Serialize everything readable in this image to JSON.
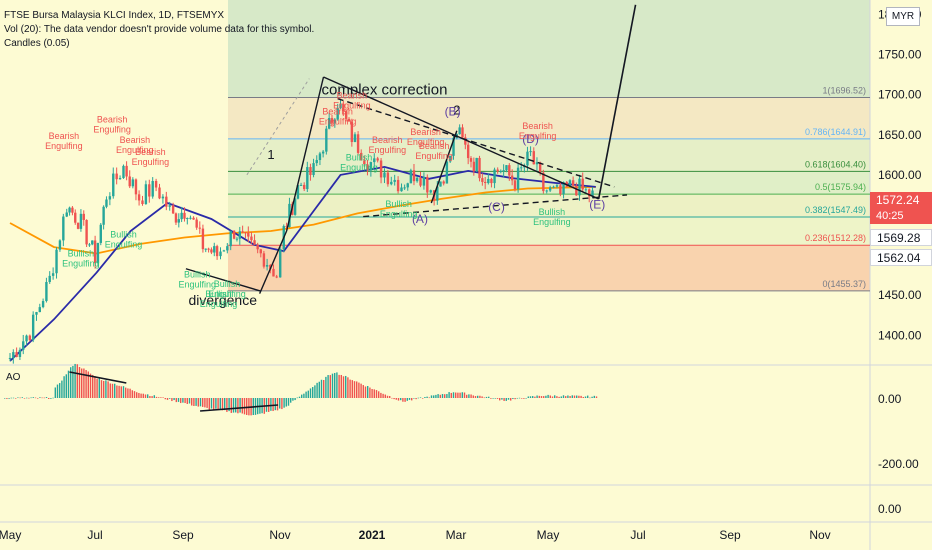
{
  "header": {
    "line1": "FTSE Bursa Malaysia KLCI Index, 1D, FTSEMYX",
    "line2": "Vol (20): The data vendor doesn't provide volume data for this symbol.",
    "line3": "Candles (0.05)"
  },
  "currency": "MYR",
  "price_boxes": {
    "last": "1572.24",
    "countdown": "40:25",
    "p2": "1569.28",
    "p3": "1562.04"
  },
  "colors": {
    "background": "#fdfbd3",
    "up_candle": "#26a69a",
    "down_candle": "#ef5350",
    "ma_blue": "#2a2aa8",
    "ma_orange": "#ff9800"
  },
  "chart_data": [
    {
      "type": "candlestick",
      "symbol": "FTSE Bursa Malaysia KLCI Index",
      "interval": "1D",
      "y_axis": {
        "ticks": [
          "1800.00",
          "1750.00",
          "1700.00",
          "1650.00",
          "1600.00",
          "1550.00",
          "1500.00",
          "1450.00",
          "1400.00"
        ],
        "range": [
          1363,
          1818
        ]
      },
      "x_axis": {
        "ticks": [
          "May",
          "Jul",
          "Sep",
          "Nov",
          "2021",
          "Mar",
          "May",
          "Jul",
          "Sep",
          "Nov"
        ]
      },
      "series": [
        {
          "name": "close",
          "points": [
            [
              "2020-05-01",
              1372
            ],
            [
              "2020-05-15",
              1405
            ],
            [
              "2020-05-29",
              1470
            ],
            [
              "2020-06-10",
              1562
            ],
            [
              "2020-06-20",
              1540
            ],
            [
              "2020-06-30",
              1498
            ],
            [
              "2020-07-08",
              1575
            ],
            [
              "2020-07-20",
              1610
            ],
            [
              "2020-07-31",
              1572
            ],
            [
              "2020-08-12",
              1585
            ],
            [
              "2020-08-24",
              1548
            ],
            [
              "2020-09-03",
              1558
            ],
            [
              "2020-09-14",
              1512
            ],
            [
              "2020-09-24",
              1500
            ],
            [
              "2020-10-06",
              1530
            ],
            [
              "2020-10-16",
              1512
            ],
            [
              "2020-10-27",
              1498
            ],
            [
              "2020-11-05",
              1475
            ],
            [
              "2020-11-10",
              1530
            ],
            [
              "2020-11-20",
              1585
            ],
            [
              "2020-12-01",
              1605
            ],
            [
              "2020-12-10",
              1650
            ],
            [
              "2020-12-18",
              1692
            ],
            [
              "2020-12-28",
              1648
            ],
            [
              "2021-01-08",
              1618
            ],
            [
              "2021-01-20",
              1603
            ],
            [
              "2021-02-01",
              1588
            ],
            [
              "2021-02-12",
              1605
            ],
            [
              "2021-02-24",
              1578
            ],
            [
              "2021-03-05",
              1610
            ],
            [
              "2021-03-12",
              1655
            ],
            [
              "2021-03-22",
              1620
            ],
            [
              "2021-04-01",
              1598
            ],
            [
              "2021-04-12",
              1608
            ],
            [
              "2021-04-22",
              1592
            ],
            [
              "2021-05-03",
              1625
            ],
            [
              "2021-05-12",
              1582
            ],
            [
              "2021-05-24",
              1575
            ],
            [
              "2021-06-02",
              1588
            ],
            [
              "2021-06-11",
              1578
            ],
            [
              "2021-06-18",
              1572
            ]
          ]
        },
        {
          "name": "ma_blue",
          "points": [
            [
              "2020-05-01",
              1368
            ],
            [
              "2020-06-01",
              1420
            ],
            [
              "2020-07-01",
              1478
            ],
            [
              "2020-07-25",
              1530
            ],
            [
              "2020-08-20",
              1565
            ],
            [
              "2020-09-20",
              1545
            ],
            [
              "2020-10-20",
              1513
            ],
            [
              "2020-11-10",
              1505
            ],
            [
              "2020-12-01",
              1555
            ],
            [
              "2020-12-20",
              1600
            ],
            [
              "2021-01-20",
              1610
            ],
            [
              "2021-02-20",
              1595
            ],
            [
              "2021-03-20",
              1605
            ],
            [
              "2021-04-20",
              1596
            ],
            [
              "2021-05-20",
              1590
            ],
            [
              "2021-06-18",
              1585
            ]
          ]
        },
        {
          "name": "ma_orange",
          "points": [
            [
              "2020-05-01",
              1540
            ],
            [
              "2020-06-01",
              1510
            ],
            [
              "2020-07-01",
              1502
            ],
            [
              "2020-08-01",
              1514
            ],
            [
              "2020-09-01",
              1522
            ],
            [
              "2020-10-01",
              1527
            ],
            [
              "2020-11-01",
              1530
            ],
            [
              "2020-12-01",
              1538
            ],
            [
              "2021-01-01",
              1552
            ],
            [
              "2021-02-01",
              1562
            ],
            [
              "2021-03-01",
              1570
            ],
            [
              "2021-04-01",
              1578
            ],
            [
              "2021-05-01",
              1583
            ],
            [
              "2021-06-18",
              1585
            ]
          ]
        }
      ],
      "fibonacci": [
        {
          "label": "1(1696.52)",
          "value": 1696.52
        },
        {
          "label": "0.786(1644.91)",
          "value": 1644.91
        },
        {
          "label": "0.618(1604.40)",
          "value": 1604.4
        },
        {
          "label": "0.5(1575.94)",
          "value": 1575.94
        },
        {
          "label": "0.382(1547.49)",
          "value": 1547.49
        },
        {
          "label": "0.236(1512.28)",
          "value": 1512.28
        },
        {
          "label": "0(1455.37)",
          "value": 1455.37
        }
      ],
      "annotations": [
        "complex correction",
        "1",
        "2",
        "(B)",
        "(D)",
        "(A)",
        "(C)",
        "(E)",
        "divergence"
      ],
      "pattern_labels": [
        {
          "text": "Bearish Engulfing",
          "kind": "bearish",
          "date": "2020-06-08",
          "price": 1645
        },
        {
          "text": "Bearish Engulfing",
          "kind": "bearish",
          "date": "2020-07-12",
          "price": 1665
        },
        {
          "text": "Bearish Engulfing",
          "kind": "bearish",
          "date": "2020-07-28",
          "price": 1640
        },
        {
          "text": "Bearish Engulfing",
          "kind": "bearish",
          "date": "2020-08-08",
          "price": 1625
        },
        {
          "text": "Bullish Engulfing",
          "kind": "bullish",
          "date": "2020-06-20",
          "price": 1498
        },
        {
          "text": "Bullish Engulfing",
          "kind": "bullish",
          "date": "2020-07-20",
          "price": 1522
        },
        {
          "text": "Bullish Engulfing",
          "kind": "bullish",
          "date": "2020-09-10",
          "price": 1472
        },
        {
          "text": "Bullish Engulfing",
          "kind": "bullish",
          "date": "2020-10-01",
          "price": 1460
        },
        {
          "text": "Bullish Engulfing",
          "kind": "bullish",
          "date": "2020-09-25",
          "price": 1448
        },
        {
          "text": "Bearish Engulfing",
          "kind": "bearish",
          "date": "2020-12-28",
          "price": 1695
        },
        {
          "text": "Bearish Engulfing",
          "kind": "bearish",
          "date": "2020-12-18",
          "price": 1675
        },
        {
          "text": "Bearish Engulfing",
          "kind": "bearish",
          "date": "2021-01-22",
          "price": 1640
        },
        {
          "text": "Bearish Engulfing",
          "kind": "bearish",
          "date": "2021-02-18",
          "price": 1650
        },
        {
          "text": "Bearish Engulfing",
          "kind": "bearish",
          "date": "2021-02-24",
          "price": 1632
        },
        {
          "text": "Bearish Engulfing",
          "kind": "bearish",
          "date": "2021-05-08",
          "price": 1657
        },
        {
          "text": "Bullish Engulfing",
          "kind": "bullish",
          "date": "2021-01-02",
          "price": 1618
        },
        {
          "text": "Bullish Engulfing",
          "kind": "bullish",
          "date": "2021-01-30",
          "price": 1560
        },
        {
          "text": "Bullish Engulfing",
          "kind": "bullish",
          "date": "2021-05-18",
          "price": 1550
        }
      ]
    },
    {
      "type": "bar",
      "title": "AO",
      "y_axis": {
        "ticks": [
          "0.00",
          "-200.00"
        ]
      },
      "approx_values": [
        [
          "2020-06-01",
          35
        ],
        [
          "2020-06-15",
          140
        ],
        [
          "2020-07-01",
          80
        ],
        [
          "2020-08-01",
          20
        ],
        [
          "2020-09-15",
          -40
        ],
        [
          "2020-10-20",
          -70
        ],
        [
          "2020-11-10",
          -40
        ],
        [
          "2020-11-25",
          25
        ],
        [
          "2020-12-15",
          105
        ],
        [
          "2021-01-10",
          40
        ],
        [
          "2021-02-01",
          -15
        ],
        [
          "2021-03-10",
          25
        ],
        [
          "2021-04-15",
          -10
        ],
        [
          "2021-05-10",
          10
        ],
        [
          "2021-06-18",
          5
        ]
      ]
    },
    {
      "type": "empty_pane",
      "y_axis": {
        "ticks": [
          "0.00"
        ]
      }
    }
  ]
}
